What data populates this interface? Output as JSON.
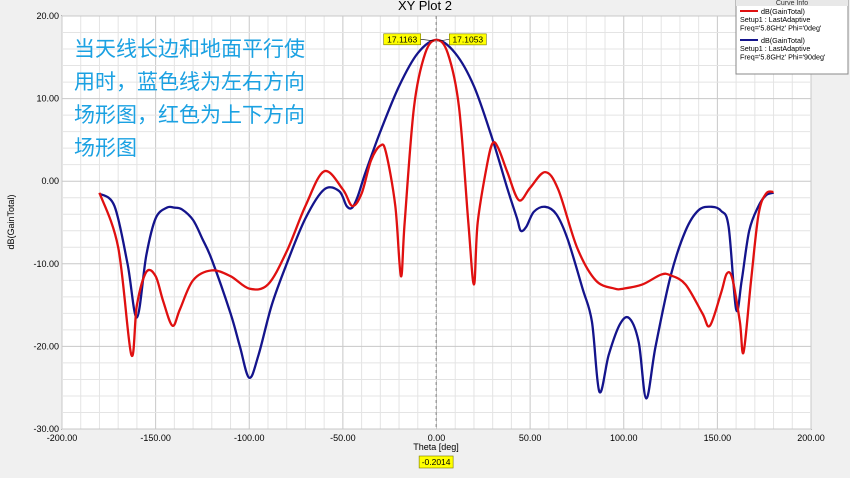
{
  "window_title": "XY Plot 2",
  "annotation": {
    "lines": [
      "当天线长边和地面平行使",
      "用时，蓝色线为左右方向",
      "场形图，红色为上下方向",
      "场形图"
    ],
    "color": "#1ba1e2"
  },
  "chart_data": {
    "type": "line",
    "title": "XY Plot 2",
    "xlabel": "Theta [deg]",
    "ylabel": "dB(GainTotal)",
    "xlim": [
      -200,
      200
    ],
    "ylim": [
      -30,
      20
    ],
    "x_ticks": [
      -200,
      -150,
      -100,
      -50,
      0,
      50,
      100,
      150,
      200
    ],
    "x_tick_labels": [
      "-200.00",
      "-150.00",
      "-100.00",
      "-50.00",
      "0.00",
      "50.00",
      "100.00",
      "150.00",
      "200.00"
    ],
    "y_ticks": [
      -30,
      -20,
      -10,
      0,
      10,
      20
    ],
    "y_tick_labels": [
      "-30.00",
      "-20.00",
      "-10.00",
      "0.00",
      "10.00",
      "20.00"
    ],
    "grid": true,
    "series": [
      {
        "name": "dB(GainTotal)\nSetup1 : LastAdaptive\nFreq='5.8GHz' Phi='0deg'",
        "color": "#e01010",
        "x": [
          -180,
          -170,
          -163,
          -160,
          -155,
          -150,
          -146,
          -141,
          -137,
          -130,
          -120,
          -110,
          -100,
          -90,
          -80,
          -70,
          -60,
          -50,
          -45,
          -40,
          -35,
          -30,
          -27,
          -22,
          -19,
          -17,
          -12,
          -6,
          0,
          6,
          12,
          17,
          20,
          22,
          27,
          30,
          33,
          38,
          44,
          50,
          58,
          65,
          75,
          85,
          95,
          100,
          110,
          120,
          125,
          133,
          142,
          146,
          152,
          155,
          158,
          162,
          164,
          168,
          172,
          176,
          180
        ],
        "y": [
          -1.4,
          -8,
          -21,
          -15,
          -11,
          -11.5,
          -14.5,
          -17.5,
          -15.5,
          -12,
          -10.8,
          -11.5,
          -13,
          -12.5,
          -8.5,
          -3,
          1.2,
          -1,
          -3,
          -1.5,
          2.5,
          4.3,
          3.5,
          -3,
          -11.5,
          -5,
          9,
          15.5,
          17.1,
          15.5,
          9,
          -5,
          -12.5,
          -5,
          2,
          4.6,
          4,
          1,
          -2.3,
          -0.8,
          1.1,
          -1,
          -8,
          -12,
          -13,
          -13,
          -12.5,
          -11.3,
          -11.4,
          -12.5,
          -16,
          -17.5,
          -13.5,
          -11.2,
          -11.8,
          -17,
          -20.7,
          -12,
          -4,
          -1.5,
          -1.3
        ]
      },
      {
        "name": "dB(GainTotal)\nSetup1 : LastAdaptive\nFreq='5.8GHz' Phi='90deg'",
        "color": "#14148c",
        "x": [
          -180,
          -172,
          -165,
          -160,
          -155,
          -150,
          -144,
          -140,
          -136,
          -130,
          -125,
          -120,
          -110,
          -105,
          -100,
          -95,
          -88,
          -80,
          -70,
          -60,
          -52,
          -48,
          -45,
          -42,
          -38,
          -30,
          -20,
          -10,
          0,
          10,
          20,
          30,
          38,
          43,
          45,
          48,
          52,
          58,
          64,
          70,
          78,
          83,
          87,
          92,
          98,
          103,
          108,
          112,
          117,
          125,
          133,
          140,
          147,
          152,
          156,
          160,
          163,
          167,
          172,
          176,
          180
        ],
        "y": [
          -1.5,
          -3,
          -10,
          -16.5,
          -9,
          -4.5,
          -3.2,
          -3.2,
          -3.4,
          -4.7,
          -7,
          -9.5,
          -16,
          -20,
          -23.8,
          -21,
          -15,
          -10,
          -4.5,
          -1,
          -1.2,
          -3,
          -3.2,
          -1.8,
          1,
          6,
          11.5,
          15.5,
          17.1,
          15.5,
          11.5,
          5,
          -1,
          -4.5,
          -6,
          -5.5,
          -3.7,
          -3.1,
          -4,
          -7,
          -13,
          -17,
          -25.5,
          -21,
          -17.3,
          -16.6,
          -19.5,
          -26.3,
          -20,
          -11.5,
          -6,
          -3.5,
          -3.1,
          -3.6,
          -5.5,
          -15.5,
          -12,
          -6,
          -3,
          -1.7,
          -1.4
        ]
      }
    ],
    "markers": [
      {
        "label": "17.1163",
        "x": -1.5,
        "y": 17.12
      },
      {
        "label": "17.1053",
        "x": 1.5,
        "y": 17.11
      }
    ],
    "cursor": {
      "x": -0.2014,
      "label": "-0.2014"
    },
    "legend": {
      "title": "Curve Info",
      "placement": "top-right"
    }
  }
}
